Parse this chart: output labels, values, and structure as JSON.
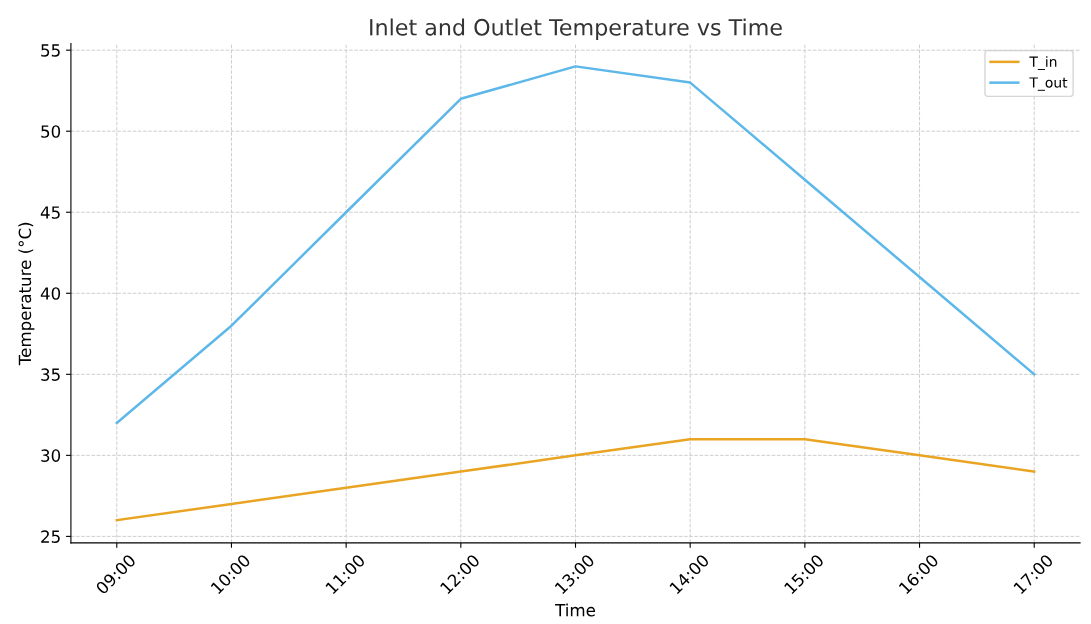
{
  "chart_data": {
    "type": "line",
    "title": "Inlet and Outlet Temperature vs Time",
    "xlabel": "Time",
    "ylabel": "Temperature (°C)",
    "categories": [
      "09:00",
      "10:00",
      "11:00",
      "12:00",
      "13:00",
      "14:00",
      "15:00",
      "16:00",
      "17:00"
    ],
    "series": [
      {
        "name": "T_in",
        "color": "#e9a423",
        "values": [
          26,
          27,
          28,
          29,
          30,
          31,
          31,
          30,
          29
        ]
      },
      {
        "name": "T_out",
        "color": "#5db8e9",
        "values": [
          32,
          38,
          45,
          52,
          54,
          53,
          47,
          41,
          35
        ]
      }
    ],
    "ylim": [
      24.6,
      55.4
    ],
    "yticks": [
      25,
      30,
      35,
      40,
      45,
      50,
      55
    ],
    "grid": true,
    "legend": "top right",
    "marker": "none",
    "line_style": "solid"
  }
}
